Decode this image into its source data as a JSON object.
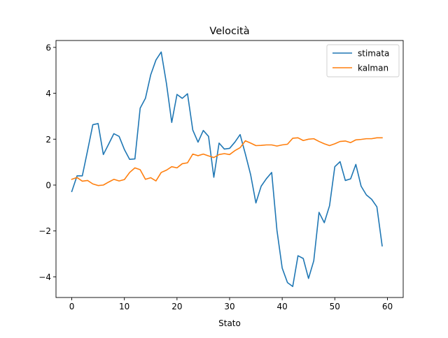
{
  "chart_data": {
    "type": "line",
    "title": "Velocità",
    "xlabel": "Stato",
    "ylabel": "",
    "xlim": [
      -3,
      63
    ],
    "ylim": [
      -4.9,
      6.3
    ],
    "xticks": [
      0,
      10,
      20,
      30,
      40,
      50,
      60
    ],
    "yticks": [
      -4,
      -2,
      0,
      2,
      4,
      6
    ],
    "xtick_labels": [
      "0",
      "10",
      "20",
      "30",
      "40",
      "50",
      "60"
    ],
    "ytick_labels": [
      "−4",
      "−2",
      "0",
      "2",
      "4",
      "6"
    ],
    "grid": false,
    "legend_position": "top-right",
    "series": [
      {
        "name": "stimata",
        "color": "#1f77b4",
        "x": [
          0,
          1,
          2,
          3,
          4,
          5,
          6,
          7,
          8,
          9,
          10,
          11,
          12,
          13,
          14,
          15,
          16,
          17,
          18,
          19,
          20,
          21,
          22,
          23,
          24,
          25,
          26,
          27,
          28,
          29,
          30,
          31,
          32,
          33,
          34,
          35,
          36,
          37,
          38,
          39,
          40,
          41,
          42,
          43,
          44,
          45,
          46,
          47,
          48,
          49,
          50,
          51,
          52,
          53,
          54,
          55,
          56,
          57,
          58,
          59
        ],
        "values": [
          -0.28,
          0.4,
          0.4,
          1.5,
          2.63,
          2.68,
          1.33,
          1.78,
          2.24,
          2.12,
          1.55,
          1.12,
          1.14,
          3.35,
          3.78,
          4.8,
          5.45,
          5.8,
          4.42,
          2.73,
          3.95,
          3.78,
          3.98,
          2.4,
          1.87,
          2.38,
          2.12,
          0.34,
          1.83,
          1.57,
          1.6,
          1.87,
          2.2,
          1.35,
          0.45,
          -0.78,
          -0.05,
          0.28,
          0.55,
          -1.97,
          -3.62,
          -4.25,
          -4.42,
          -3.08,
          -3.2,
          -4.07,
          -3.3,
          -1.19,
          -1.64,
          -0.9,
          0.8,
          1.02,
          0.2,
          0.27,
          0.9,
          -0.05,
          -0.43,
          -0.62,
          -0.95,
          -2.65
        ]
      },
      {
        "name": "kalman",
        "color": "#ff7f0e",
        "x": [
          0,
          1,
          2,
          3,
          4,
          5,
          6,
          7,
          8,
          9,
          10,
          11,
          12,
          13,
          14,
          15,
          16,
          17,
          18,
          19,
          20,
          21,
          22,
          23,
          24,
          25,
          26,
          27,
          28,
          29,
          30,
          31,
          32,
          33,
          34,
          35,
          36,
          37,
          38,
          39,
          40,
          41,
          42,
          43,
          44,
          45,
          46,
          47,
          48,
          49,
          50,
          51,
          52,
          53,
          54,
          55,
          56,
          57,
          58,
          59
        ],
        "values": [
          0.25,
          0.33,
          0.17,
          0.2,
          0.05,
          -0.02,
          0.0,
          0.13,
          0.25,
          0.18,
          0.24,
          0.55,
          0.75,
          0.67,
          0.25,
          0.32,
          0.18,
          0.55,
          0.65,
          0.8,
          0.75,
          0.93,
          0.97,
          1.35,
          1.28,
          1.35,
          1.27,
          1.2,
          1.33,
          1.37,
          1.33,
          1.5,
          1.63,
          1.93,
          1.83,
          1.72,
          1.73,
          1.75,
          1.75,
          1.7,
          1.75,
          1.78,
          2.04,
          2.06,
          1.94,
          2.0,
          2.02,
          1.9,
          1.8,
          1.72,
          1.8,
          1.9,
          1.92,
          1.85,
          1.97,
          1.99,
          2.02,
          2.02,
          2.06,
          2.06
        ]
      }
    ]
  }
}
